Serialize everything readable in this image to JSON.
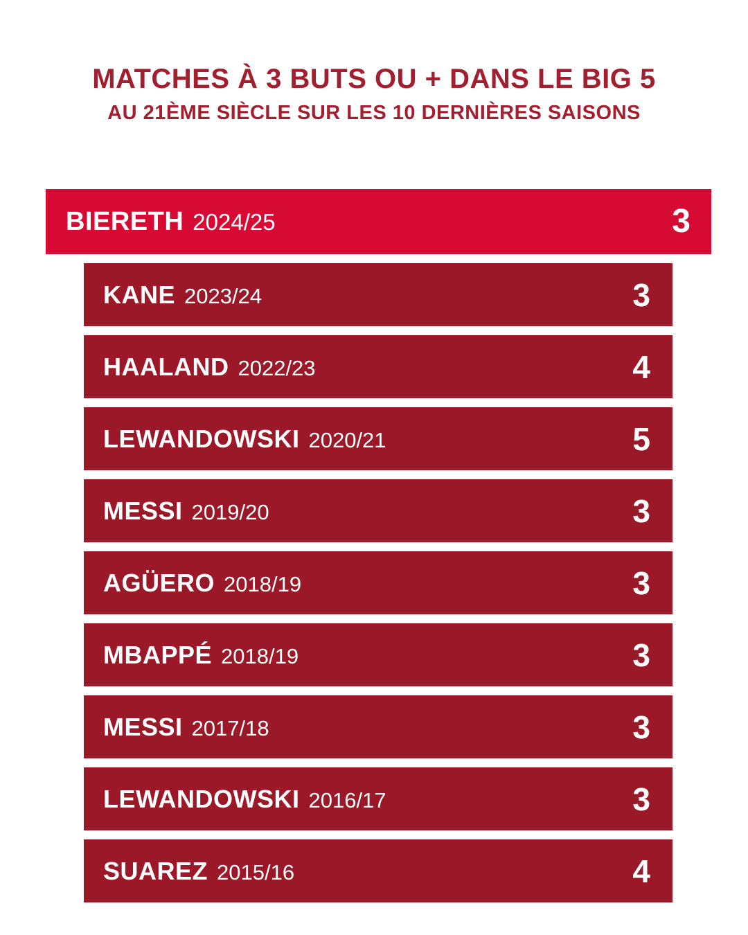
{
  "header": {
    "title": "MATCHES À 3 BUTS OU + DANS LE BIG 5",
    "subtitle": "AU 21ÈME SIÈCLE SUR LES 10 DERNIÈRES SAISONS"
  },
  "colors": {
    "background": "#FFFFFF",
    "title_text": "#A21F30",
    "highlight_bar": "#D60A33",
    "bar": "#9B1828",
    "bar_text": "#FFFFFF"
  },
  "chart_data": {
    "type": "bar",
    "orientation": "horizontal",
    "layout": "list",
    "bar_widths_encode_value": false,
    "legend": "none",
    "title": "MATCHES À 3 BUTS OU + DANS LE BIG 5",
    "subtitle": "AU 21ÈME SIÈCLE SUR LES 10 DERNIÈRES SAISONS",
    "rows": [
      {
        "player": "BIERETH",
        "season": "2024/25",
        "value": 3,
        "highlighted": true
      },
      {
        "player": "KANE",
        "season": "2023/24",
        "value": 3,
        "highlighted": false
      },
      {
        "player": "HAALAND",
        "season": "2022/23",
        "value": 4,
        "highlighted": false
      },
      {
        "player": "LEWANDOWSKI",
        "season": "2020/21",
        "value": 5,
        "highlighted": false
      },
      {
        "player": "MESSI",
        "season": "2019/20",
        "value": 3,
        "highlighted": false
      },
      {
        "player": "AGÜERO",
        "season": "2018/19",
        "value": 3,
        "highlighted": false
      },
      {
        "player": "MBAPPÉ",
        "season": "2018/19",
        "value": 3,
        "highlighted": false
      },
      {
        "player": "MESSI",
        "season": "2017/18",
        "value": 3,
        "highlighted": false
      },
      {
        "player": "LEWANDOWSKI",
        "season": "2016/17",
        "value": 3,
        "highlighted": false
      },
      {
        "player": "SUAREZ",
        "season": "2015/16",
        "value": 4,
        "highlighted": false
      }
    ]
  }
}
